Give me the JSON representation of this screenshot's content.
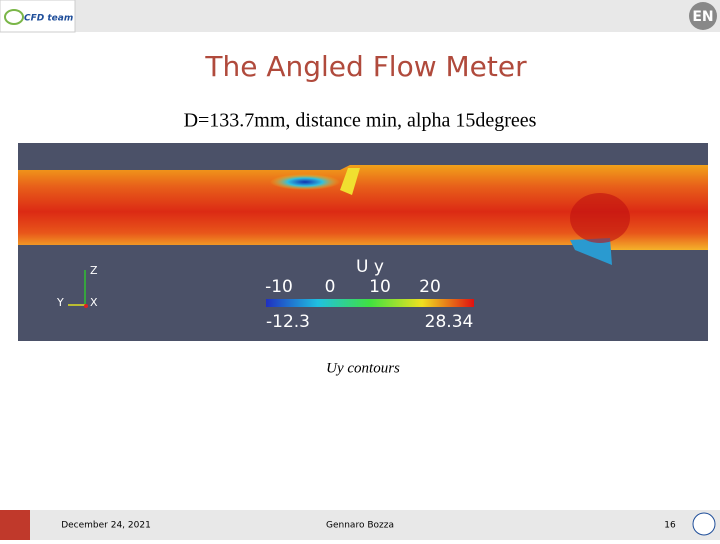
{
  "header": {
    "logo_text": "CFD team",
    "badge": "EN"
  },
  "title": "The Angled Flow Meter",
  "subtitle": "D=133.7mm, distance min, alpha 15degrees",
  "figure": {
    "variable": "U y",
    "scale_ticks": [
      "-10",
      "0",
      "10",
      "20"
    ],
    "scale_min": "-12.3",
    "scale_max": "28.34",
    "axes": [
      "Z",
      "Y",
      "X"
    ]
  },
  "caption": "Uy contours",
  "footer": {
    "date": "December 24, 2021",
    "author": "Gennaro Bozza",
    "page": "16"
  }
}
